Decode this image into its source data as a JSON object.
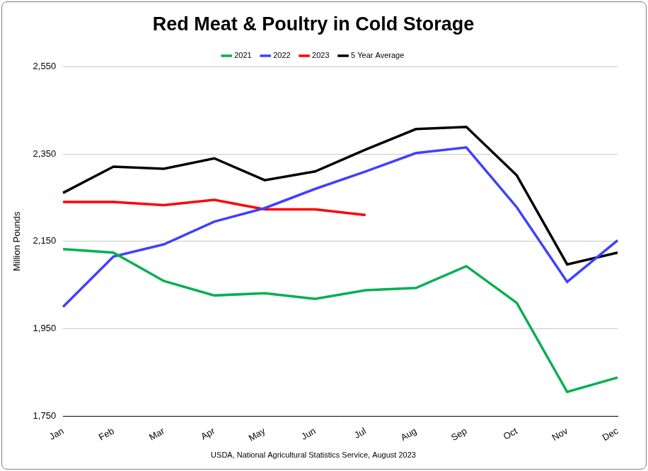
{
  "chart_data": {
    "type": "line",
    "title": "Red Meat & Poultry in Cold Storage",
    "source": "USDA, National Agricultural Statistics Service, August 2023",
    "y_label": "Million Pounds",
    "categories": [
      "Jan",
      "Feb",
      "Mar",
      "Apr",
      "May",
      "Jun",
      "Jul",
      "Aug",
      "Sep",
      "Oct",
      "Nov",
      "Dec"
    ],
    "series": [
      {
        "name": "2021",
        "color": "#00b050",
        "values": [
          2132,
          2124,
          2059,
          2026,
          2031,
          2018,
          2038,
          2043,
          2093,
          2009,
          1805,
          1838
        ]
      },
      {
        "name": "2022",
        "color": "#4040ff",
        "values": [
          2000,
          2115,
          2143,
          2195,
          2226,
          2270,
          2310,
          2352,
          2365,
          2228,
          2057,
          2152
        ]
      },
      {
        "name": "2023",
        "color": "#ff0000",
        "values": [
          2240,
          2240,
          2233,
          2245,
          2223,
          2223,
          2210,
          null,
          null,
          null,
          null,
          null
        ]
      },
      {
        "name": "5 Year Average",
        "color": "#000000",
        "values": [
          2261,
          2321,
          2316,
          2340,
          2290,
          2310,
          2360,
          2407,
          2412,
          2301,
          2097,
          2124
        ]
      }
    ],
    "ylim": [
      1750,
      2550
    ],
    "yticks": [
      {
        "value": 1750,
        "label": "1,750"
      },
      {
        "value": 1950,
        "label": "1,950"
      },
      {
        "value": 2150,
        "label": "2,150"
      },
      {
        "value": 2350,
        "label": "2,350"
      },
      {
        "value": 2550,
        "label": "2,550"
      }
    ],
    "grid": true,
    "legend": "top"
  }
}
